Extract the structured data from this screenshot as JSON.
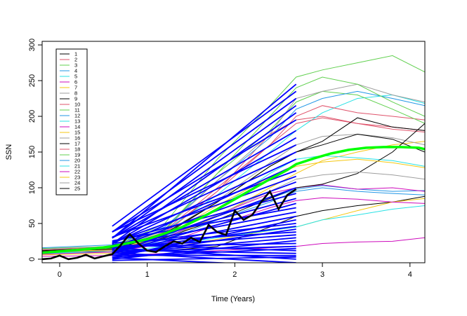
{
  "chart_data": {
    "type": "line",
    "title": "",
    "xlabel": "Time (Years)",
    "ylabel": "SSN",
    "xlim": [
      -0.2,
      4.17
    ],
    "ylim": [
      -5,
      305
    ],
    "x_ticks": [
      "0",
      "1",
      "2",
      "3",
      "4"
    ],
    "y_ticks": [
      "0",
      "50",
      "100",
      "150",
      "200",
      "250",
      "300"
    ],
    "grid": false,
    "legend_position": "top-left",
    "legend": [
      {
        "label": "1",
        "color": "#000000"
      },
      {
        "label": "2",
        "color": "#DF536B"
      },
      {
        "label": "3",
        "color": "#61D04F"
      },
      {
        "label": "4",
        "color": "#2297E6"
      },
      {
        "label": "5",
        "color": "#28E2E5"
      },
      {
        "label": "6",
        "color": "#CD0BBC"
      },
      {
        "label": "7",
        "color": "#F5C710"
      },
      {
        "label": "8",
        "color": "#9E9E9E"
      },
      {
        "label": "9",
        "color": "#000000"
      },
      {
        "label": "10",
        "color": "#DF536B"
      },
      {
        "label": "11",
        "color": "#61D04F"
      },
      {
        "label": "12",
        "color": "#2297E6"
      },
      {
        "label": "13",
        "color": "#28E2E5"
      },
      {
        "label": "14",
        "color": "#CD0BBC"
      },
      {
        "label": "15",
        "color": "#F5C710"
      },
      {
        "label": "16",
        "color": "#9E9E9E"
      },
      {
        "label": "17",
        "color": "#000000"
      },
      {
        "label": "18",
        "color": "#DF536B"
      },
      {
        "label": "19",
        "color": "#61D04F"
      },
      {
        "label": "20",
        "color": "#2297E6"
      },
      {
        "label": "21",
        "color": "#28E2E5"
      },
      {
        "label": "22",
        "color": "#CD0BBC"
      },
      {
        "label": "23",
        "color": "#F5C710"
      },
      {
        "label": "24",
        "color": "#9E9E9E"
      },
      {
        "label": "25",
        "color": "#000000"
      }
    ],
    "highlight": {
      "observed_color": "#000000",
      "mean_color": "#00FF00",
      "forecast_color": "#0000FF",
      "forecast_x_range": [
        0.6,
        2.7
      ],
      "observed": {
        "x": [
          -0.2,
          -0.1,
          0,
          0.1,
          0.2,
          0.3,
          0.4,
          0.5,
          0.6,
          0.7,
          0.8,
          0.9,
          1.0,
          1.1,
          1.2,
          1.3,
          1.4,
          1.5,
          1.6,
          1.7,
          1.8,
          1.9,
          2.0,
          2.1,
          2.2,
          2.3,
          2.4,
          2.5,
          2.6,
          2.7
        ],
        "y": [
          0,
          1,
          5,
          0,
          2,
          6,
          1,
          4,
          7,
          20,
          35,
          22,
          12,
          10,
          18,
          25,
          22,
          30,
          24,
          48,
          38,
          34,
          68,
          55,
          62,
          80,
          95,
          70,
          90,
          98
        ]
      },
      "mean": {
        "x": [
          -0.2,
          0,
          0.2,
          0.4,
          0.6,
          0.8,
          1.0,
          1.2,
          1.4,
          1.6,
          1.8,
          2.0,
          2.2,
          2.4,
          2.6,
          2.7,
          2.9,
          3.1,
          3.3,
          3.5,
          3.7,
          3.9,
          4.1,
          4.17
        ],
        "y": [
          9,
          11,
          13,
          15,
          18,
          23,
          28,
          36,
          45,
          57,
          70,
          84,
          98,
          112,
          125,
          133,
          141,
          148,
          153,
          156,
          157,
          157,
          156,
          154
        ]
      },
      "forecast_end_values": [
        -15,
        -10,
        -5,
        0,
        3,
        5,
        8,
        12,
        15,
        18,
        22,
        26,
        30,
        34,
        38,
        42,
        46,
        50,
        55,
        60,
        66,
        72,
        78,
        85,
        92,
        100,
        108,
        116,
        124,
        132,
        140,
        150,
        160,
        170,
        180,
        195,
        205,
        215,
        225,
        235,
        245
      ]
    },
    "series": [
      {
        "name": "1",
        "x": [
          -0.2,
          0.6,
          1.2,
          1.8,
          2.4,
          2.7,
          3.0,
          3.4,
          3.8,
          4.17
        ],
        "y": [
          10,
          10,
          12,
          18,
          45,
          60,
          68,
          75,
          80,
          88
        ]
      },
      {
        "name": "2",
        "x": [
          -0.2,
          0.6,
          1.2,
          1.8,
          2.4,
          2.7,
          3.0,
          3.4,
          3.8,
          4.17
        ],
        "y": [
          10,
          14,
          38,
          95,
          175,
          195,
          200,
          190,
          182,
          178
        ]
      },
      {
        "name": "3",
        "x": [
          -0.2,
          0.6,
          1.2,
          1.8,
          2.4,
          2.7,
          3.0,
          3.4,
          3.8,
          4.17
        ],
        "y": [
          12,
          16,
          50,
          140,
          215,
          255,
          265,
          275,
          285,
          262
        ]
      },
      {
        "name": "4",
        "x": [
          -0.2,
          0.6,
          1.2,
          1.8,
          2.4,
          2.7,
          3.0,
          3.4,
          3.8,
          4.17
        ],
        "y": [
          8,
          12,
          30,
          60,
          85,
          98,
          103,
          98,
          95,
          96
        ]
      },
      {
        "name": "5",
        "x": [
          -0.2,
          0.6,
          1.2,
          1.8,
          2.4,
          2.7,
          3.0,
          3.4,
          3.8,
          4.17
        ],
        "y": [
          14,
          18,
          40,
          90,
          150,
          180,
          205,
          225,
          230,
          218
        ]
      },
      {
        "name": "6",
        "x": [
          -0.2,
          0.6,
          1.2,
          1.8,
          2.4,
          2.7,
          3.0,
          3.4,
          3.8,
          4.17
        ],
        "y": [
          4,
          5,
          8,
          12,
          16,
          18,
          22,
          24,
          25,
          30
        ]
      },
      {
        "name": "7",
        "x": [
          -0.2,
          0.6,
          1.2,
          1.8,
          2.4,
          2.7,
          3.0,
          3.4,
          3.8,
          4.17
        ],
        "y": [
          9,
          12,
          28,
          60,
          100,
          120,
          138,
          150,
          160,
          165
        ]
      },
      {
        "name": "8",
        "x": [
          -0.2,
          0.6,
          1.2,
          1.8,
          2.4,
          2.7,
          3.0,
          3.4,
          3.8,
          4.17
        ],
        "y": [
          11,
          15,
          36,
          82,
          135,
          160,
          172,
          175,
          170,
          160
        ]
      },
      {
        "name": "9",
        "x": [
          -0.2,
          0.6,
          1.2,
          1.8,
          2.4,
          2.7,
          3.0,
          3.4,
          3.8,
          4.17
        ],
        "y": [
          10,
          14,
          34,
          80,
          130,
          150,
          160,
          175,
          168,
          150
        ]
      },
      {
        "name": "10",
        "x": [
          -0.2,
          0.6,
          1.2,
          1.8,
          2.4,
          2.7,
          3.0,
          3.4,
          3.8,
          4.17
        ],
        "y": [
          12,
          15,
          36,
          95,
          160,
          200,
          215,
          205,
          200,
          195
        ]
      },
      {
        "name": "11",
        "x": [
          -0.2,
          0.6,
          1.2,
          1.8,
          2.4,
          2.7,
          3.0,
          3.4,
          3.8,
          4.17
        ],
        "y": [
          15,
          18,
          42,
          120,
          180,
          220,
          235,
          230,
          210,
          190
        ]
      },
      {
        "name": "12",
        "x": [
          -0.2,
          0.6,
          1.2,
          1.8,
          2.4,
          2.7,
          3.0,
          3.4,
          3.8,
          4.17
        ],
        "y": [
          16,
          20,
          45,
          110,
          170,
          210,
          225,
          235,
          225,
          215
        ]
      },
      {
        "name": "13",
        "x": [
          -0.2,
          0.6,
          1.2,
          1.8,
          2.4,
          2.7,
          3.0,
          3.4,
          3.8,
          4.17
        ],
        "y": [
          8,
          12,
          30,
          70,
          120,
          140,
          145,
          142,
          138,
          130
        ]
      },
      {
        "name": "14",
        "x": [
          -0.2,
          0.6,
          1.2,
          1.8,
          2.4,
          2.7,
          3.0,
          3.4,
          3.8,
          4.17
        ],
        "y": [
          10,
          13,
          30,
          62,
          92,
          100,
          104,
          98,
          100,
          95
        ]
      },
      {
        "name": "15",
        "x": [
          -0.2,
          0.6,
          1.2,
          1.8,
          2.4,
          2.7,
          3.0,
          3.4,
          3.8,
          4.17
        ],
        "y": [
          6,
          8,
          15,
          28,
          40,
          45,
          55,
          68,
          80,
          85
        ]
      },
      {
        "name": "16",
        "x": [
          -0.2,
          0.6,
          1.2,
          1.8,
          2.4,
          2.7,
          3.0,
          3.4,
          3.8,
          4.17
        ],
        "y": [
          14,
          18,
          42,
          110,
          175,
          225,
          235,
          245,
          230,
          220
        ]
      },
      {
        "name": "17",
        "x": [
          -0.2,
          0.6,
          1.2,
          1.8,
          2.4,
          2.7,
          3.0,
          3.4,
          3.8,
          4.17
        ],
        "y": [
          11,
          14,
          30,
          55,
          85,
          100,
          105,
          120,
          150,
          190
        ]
      },
      {
        "name": "18",
        "x": [
          -0.2,
          0.6,
          1.2,
          1.8,
          2.4,
          2.7,
          3.0,
          3.4,
          3.8,
          4.17
        ],
        "y": [
          13,
          17,
          40,
          100,
          160,
          190,
          198,
          190,
          185,
          180
        ]
      },
      {
        "name": "19",
        "x": [
          -0.2,
          0.6,
          1.2,
          1.8,
          2.4,
          2.7,
          3.0,
          3.4,
          3.8,
          4.17
        ],
        "y": [
          12,
          15,
          40,
          120,
          200,
          240,
          255,
          245,
          220,
          200
        ]
      },
      {
        "name": "20",
        "x": [
          -0.2,
          0.6,
          1.2,
          1.8,
          2.4,
          2.7,
          3.0,
          3.4,
          3.8,
          4.17
        ],
        "y": [
          9,
          12,
          25,
          55,
          80,
          95,
          100,
          95,
          92,
          90
        ]
      },
      {
        "name": "21",
        "x": [
          -0.2,
          0.6,
          1.2,
          1.8,
          2.4,
          2.7,
          3.0,
          3.4,
          3.8,
          4.17
        ],
        "y": [
          8,
          10,
          18,
          30,
          40,
          45,
          55,
          62,
          70,
          75
        ]
      },
      {
        "name": "22",
        "x": [
          -0.2,
          0.6,
          1.2,
          1.8,
          2.4,
          2.7,
          3.0,
          3.4,
          3.8,
          4.17
        ],
        "y": [
          7,
          10,
          22,
          48,
          72,
          82,
          86,
          84,
          80,
          78
        ]
      },
      {
        "name": "23",
        "x": [
          -0.2,
          0.6,
          1.2,
          1.8,
          2.4,
          2.7,
          3.0,
          3.4,
          3.8,
          4.17
        ],
        "y": [
          10,
          13,
          32,
          75,
          115,
          130,
          136,
          140,
          135,
          128
        ]
      },
      {
        "name": "24",
        "x": [
          -0.2,
          0.6,
          1.2,
          1.8,
          2.4,
          2.7,
          3.0,
          3.4,
          3.8,
          4.17
        ],
        "y": [
          9,
          12,
          28,
          62,
          95,
          112,
          118,
          122,
          118,
          112
        ]
      },
      {
        "name": "25",
        "x": [
          -0.2,
          0.6,
          1.2,
          1.8,
          2.4,
          2.7,
          3.0,
          3.4,
          3.8,
          4.17
        ],
        "y": [
          12,
          16,
          36,
          80,
          130,
          150,
          165,
          198,
          185,
          180
        ]
      }
    ]
  }
}
